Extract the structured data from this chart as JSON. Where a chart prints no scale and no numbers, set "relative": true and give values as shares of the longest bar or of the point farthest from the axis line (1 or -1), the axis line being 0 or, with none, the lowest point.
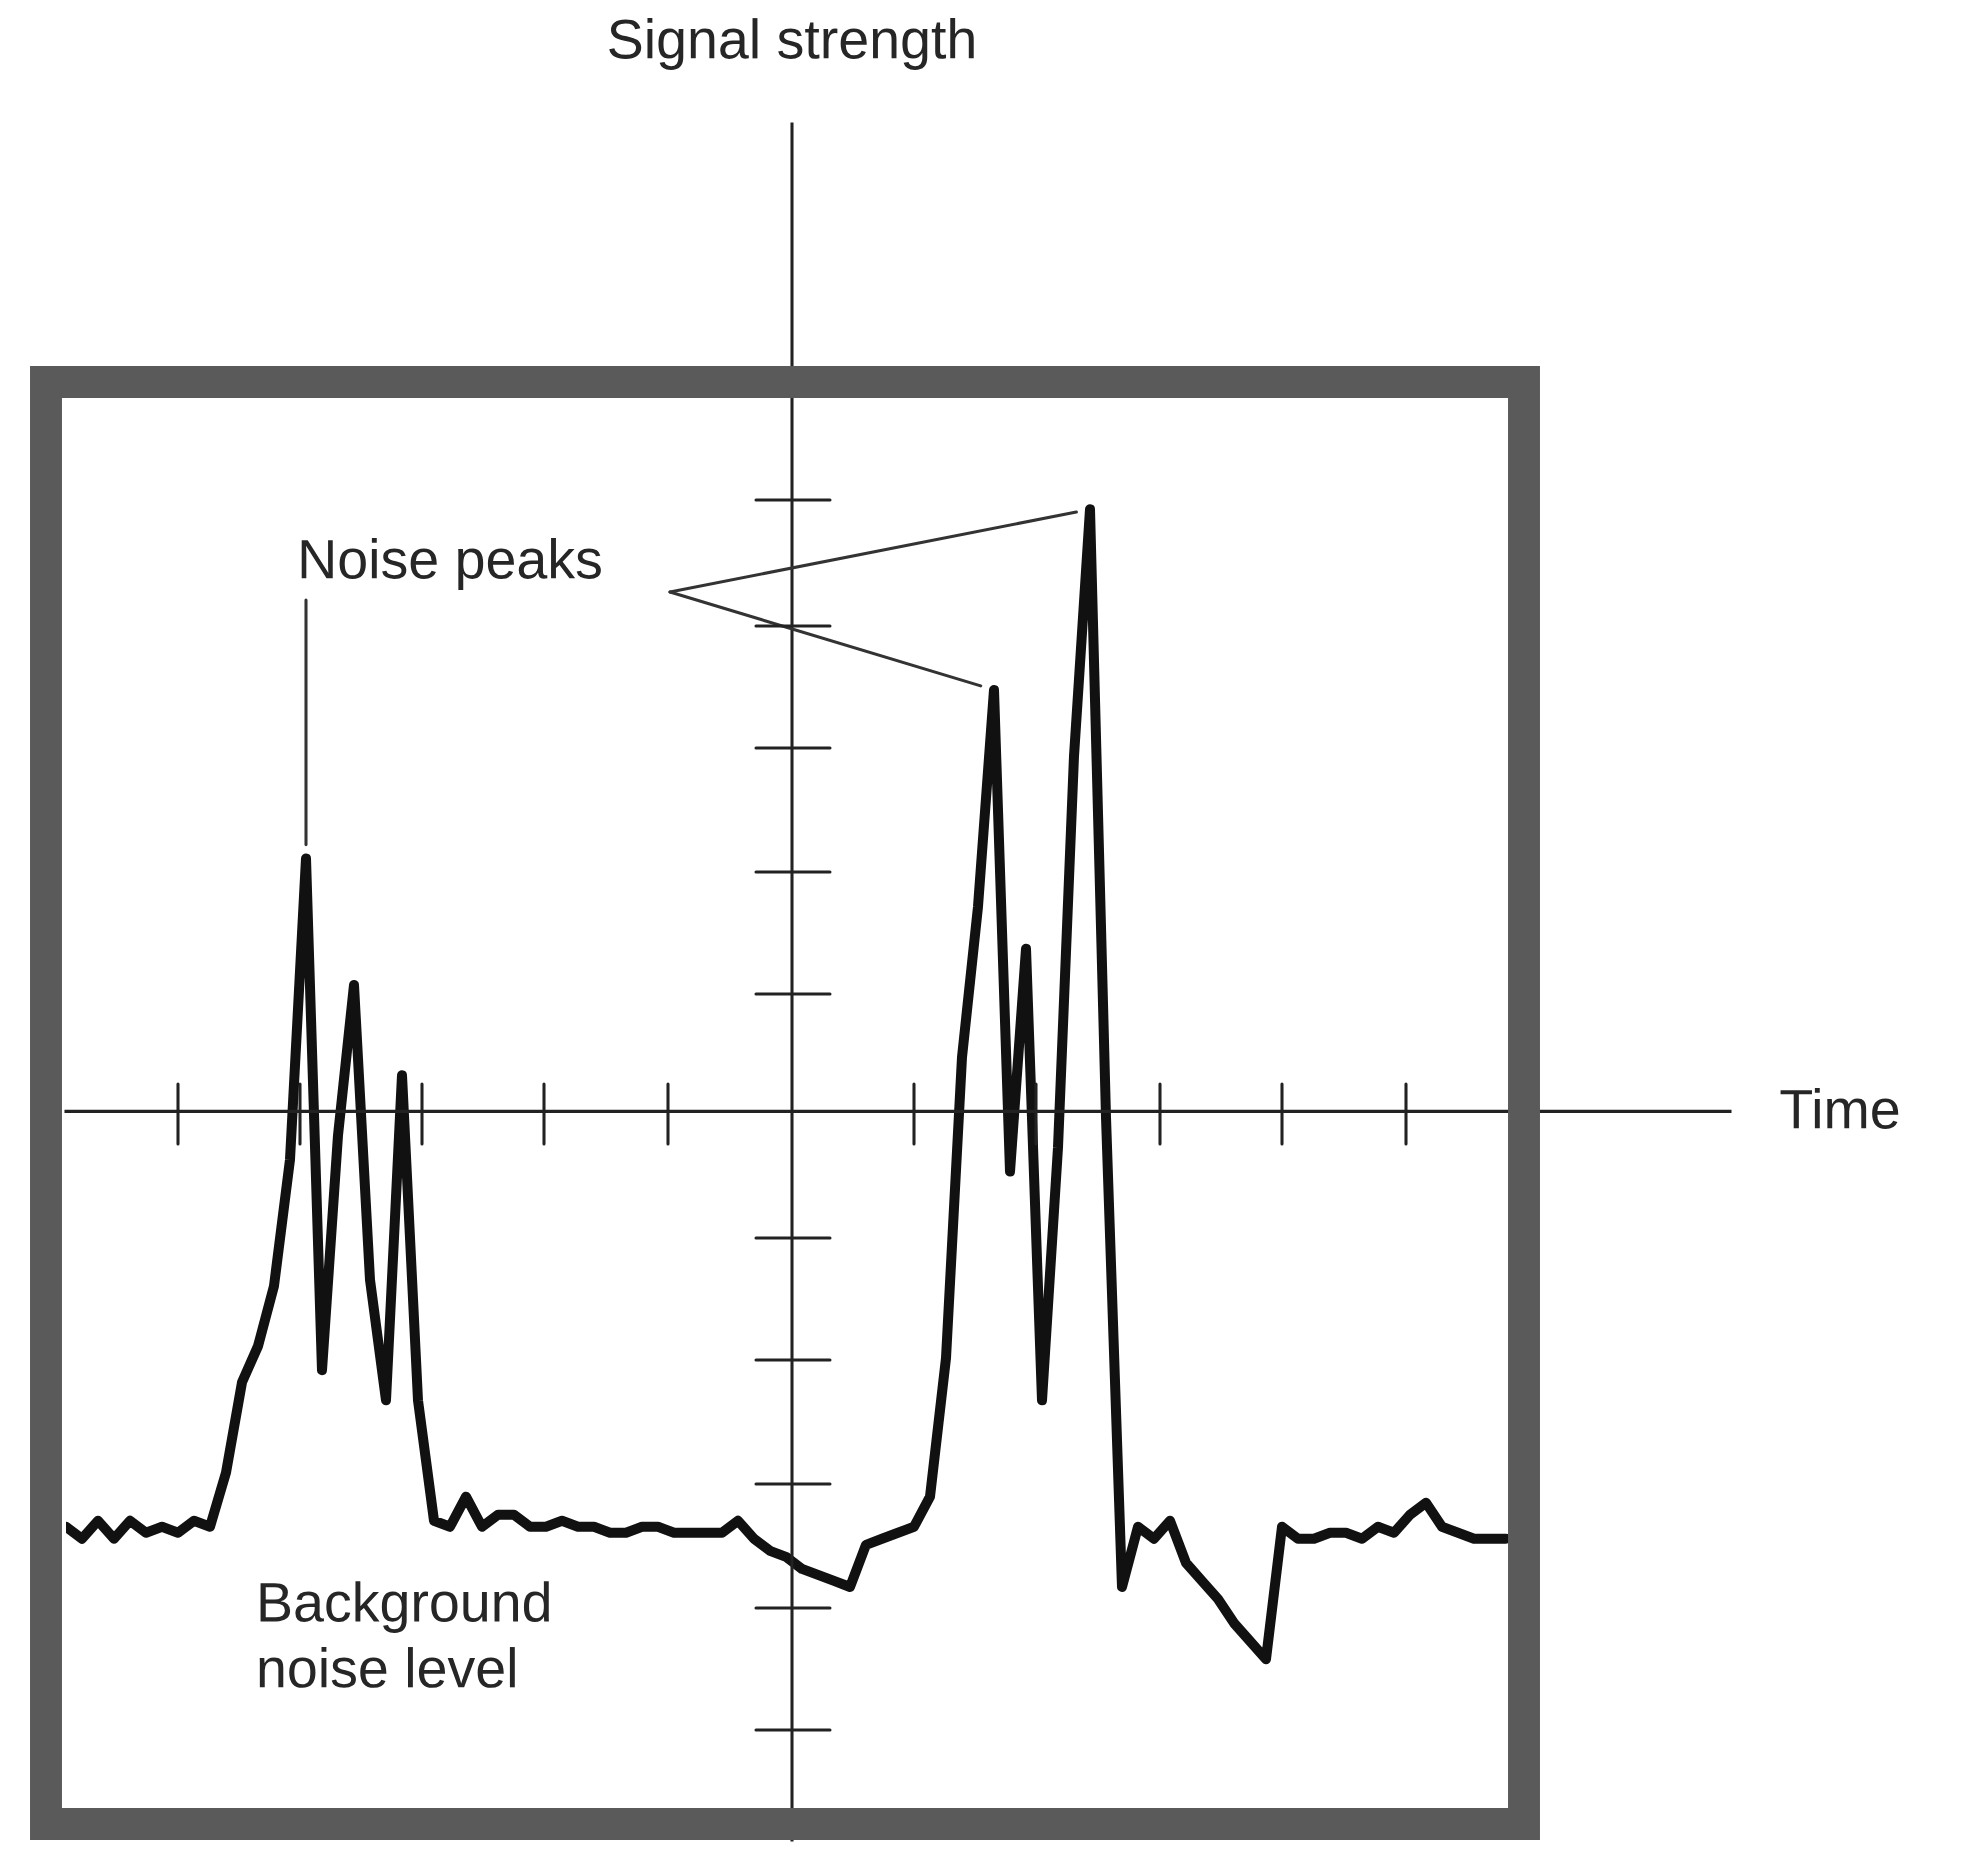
{
  "chart_data": {
    "type": "line",
    "relative": true,
    "xlabel": "Time",
    "annotations": [
      "Noise peaks",
      "Background\nnoise level",
      "Signal strength"
    ],
    "categories": [
      null,
      null,
      null,
      null,
      null,
      null,
      null,
      null,
      null,
      null,
      null,
      null,
      null,
      null,
      null,
      null,
      null,
      null,
      null,
      null,
      null,
      null,
      null,
      null,
      null,
      null,
      null,
      null,
      null,
      null,
      null,
      null,
      null,
      null,
      null,
      null,
      null,
      null,
      null,
      null,
      null,
      null,
      null,
      null,
      null,
      null,
      null,
      null,
      null,
      null,
      null,
      null,
      null,
      null,
      null,
      null,
      null,
      null,
      null,
      null,
      null,
      null,
      null,
      null,
      null,
      null,
      null,
      null,
      null,
      null,
      null,
      null,
      null,
      null,
      null,
      null,
      null,
      null,
      null,
      null,
      null,
      null,
      null,
      null,
      null,
      null,
      null,
      null,
      null,
      null,
      null
    ],
    "grid": false,
    "legend": false,
    "marker": "none",
    "line_style": "solid",
    "series": [
      {
        "color": "#111111",
        "values": [
          -0.69,
          -0.71,
          -0.68,
          -0.71,
          -0.68,
          -0.7,
          -0.69,
          -0.7,
          -0.68,
          -0.69,
          -0.6,
          -0.45,
          -0.39,
          -0.29,
          -0.08,
          0.42,
          -0.43,
          -0.04,
          0.21,
          -0.28,
          -0.48,
          0.06,
          -0.48,
          -0.68,
          -0.69,
          -0.64,
          -0.69,
          -0.67,
          -0.67,
          -0.69,
          -0.69,
          -0.68,
          -0.69,
          -0.69,
          -0.7,
          -0.7,
          -0.69,
          -0.69,
          -0.7,
          -0.7,
          -0.7,
          -0.7,
          -0.68,
          -0.71,
          -0.73,
          -0.74,
          -0.76,
          -0.77,
          -0.78,
          -0.79,
          -0.72,
          -0.71,
          -0.7,
          -0.69,
          -0.64,
          -0.41,
          0.09,
          0.34,
          0.7,
          -0.1,
          0.27,
          -0.48,
          -0.06,
          0.59,
          1.0,
          -0.01,
          -0.79,
          -0.69,
          -0.71,
          -0.68,
          -0.75,
          -0.78,
          -0.81,
          -0.85,
          -0.88,
          -0.91,
          -0.69,
          -0.71,
          -0.71,
          -0.7,
          -0.7,
          -0.71,
          -0.69,
          -0.7,
          -0.67,
          -0.65,
          -0.69,
          -0.7,
          -0.71,
          -0.71,
          -0.71
        ]
      }
    ]
  }
}
